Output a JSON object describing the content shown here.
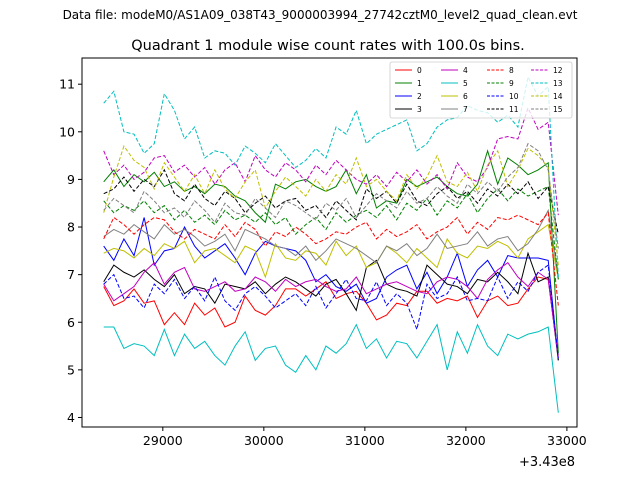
{
  "chart_data": {
    "type": "line",
    "suptitle": "Data file: modeM0/AS1A09_038T43_9000003994_27742cztM0_level2_quad_clean.evt",
    "title": "Quadrant 1 module wise count rates with 100.0s bins.",
    "xlabel": "",
    "ylabel": "",
    "x_offset_label": "+3.43e8",
    "xlim": [
      28200,
      33100
    ],
    "ylim": [
      3.8,
      11.55
    ],
    "x_ticks": [
      29000,
      30000,
      31000,
      32000,
      33000
    ],
    "x_tick_labels": [
      "29000",
      "30000",
      "31000",
      "32000",
      "33000"
    ],
    "y_ticks": [
      4,
      5,
      6,
      7,
      8,
      9,
      10,
      11
    ],
    "y_tick_labels": [
      "4",
      "5",
      "6",
      "7",
      "8",
      "9",
      "10",
      "11"
    ],
    "x": [
      28415,
      28515,
      28615,
      28715,
      28815,
      28915,
      29015,
      29115,
      29215,
      29315,
      29415,
      29515,
      29615,
      29715,
      29815,
      29915,
      30015,
      30115,
      30215,
      30315,
      30415,
      30515,
      30615,
      30715,
      30815,
      30915,
      31015,
      31115,
      31215,
      31315,
      31415,
      31515,
      31615,
      31715,
      31815,
      31915,
      32015,
      32115,
      32215,
      32315,
      32415,
      32515,
      32615,
      32715,
      32815,
      32915
    ],
    "legend_position": "top-right",
    "series": [
      {
        "name": "0",
        "color": "#ff0000",
        "dash": "solid",
        "values": [
          6.75,
          6.35,
          6.45,
          6.7,
          6.4,
          6.45,
          5.95,
          6.2,
          5.95,
          6.4,
          6.15,
          6.3,
          5.9,
          6.0,
          6.55,
          6.25,
          6.15,
          6.35,
          6.7,
          6.7,
          6.55,
          6.7,
          6.85,
          6.5,
          6.6,
          6.65,
          6.4,
          6.05,
          6.15,
          6.4,
          6.35,
          6.65,
          6.65,
          6.4,
          6.5,
          6.45,
          6.55,
          6.1,
          6.45,
          6.55,
          6.35,
          6.4,
          6.7,
          6.95,
          6.9,
          5.3
        ]
      },
      {
        "name": "1",
        "color": "#008000",
        "dash": "solid",
        "values": [
          8.95,
          9.2,
          8.85,
          9.1,
          8.95,
          9.15,
          8.85,
          8.95,
          8.75,
          8.85,
          8.7,
          8.9,
          8.85,
          8.65,
          8.55,
          8.3,
          8.1,
          8.9,
          8.8,
          8.95,
          9.0,
          8.85,
          8.75,
          8.85,
          9.2,
          8.7,
          9.1,
          8.4,
          8.55,
          8.5,
          9.0,
          8.85,
          8.95,
          9.05,
          8.85,
          8.7,
          8.65,
          8.9,
          9.6,
          8.9,
          9.45,
          9.3,
          9.1,
          9.2,
          9.35,
          5.35
        ]
      },
      {
        "name": "2",
        "color": "#0000ff",
        "dash": "solid",
        "values": [
          7.6,
          7.3,
          7.75,
          7.4,
          8.2,
          7.2,
          7.5,
          7.55,
          8.0,
          7.6,
          7.35,
          7.5,
          7.65,
          7.35,
          7.0,
          7.45,
          7.7,
          7.6,
          7.55,
          7.5,
          7.3,
          6.85,
          7.0,
          6.75,
          6.65,
          6.8,
          6.4,
          6.5,
          6.95,
          7.1,
          7.2,
          6.7,
          7.05,
          6.6,
          6.95,
          7.45,
          6.75,
          7.1,
          7.3,
          6.95,
          7.4,
          7.35,
          7.35,
          7.35,
          7.3,
          5.2
        ]
      },
      {
        "name": "3",
        "color": "#000000",
        "dash": "solid",
        "values": [
          6.85,
          7.2,
          7.05,
          6.95,
          7.1,
          6.9,
          6.75,
          7.0,
          6.6,
          6.75,
          6.7,
          6.4,
          6.8,
          6.75,
          6.7,
          6.85,
          6.6,
          6.8,
          6.95,
          6.85,
          6.7,
          6.55,
          6.8,
          6.9,
          6.6,
          6.25,
          7.15,
          7.3,
          6.8,
          6.7,
          6.65,
          6.55,
          7.2,
          7.0,
          6.8,
          6.75,
          6.6,
          6.9,
          6.85,
          7.05,
          6.85,
          6.6,
          7.45,
          6.85,
          6.95,
          5.2
        ]
      },
      {
        "name": "4",
        "color": "#bf00bf",
        "dash": "solid",
        "values": [
          6.8,
          6.45,
          6.6,
          6.75,
          7.05,
          7.25,
          6.8,
          7.05,
          7.15,
          6.7,
          6.65,
          6.75,
          6.85,
          6.65,
          6.7,
          6.95,
          6.85,
          6.65,
          6.9,
          6.75,
          6.85,
          6.9,
          6.75,
          6.65,
          6.7,
          6.95,
          6.6,
          6.7,
          6.8,
          6.85,
          6.75,
          6.65,
          6.6,
          6.85,
          6.95,
          6.9,
          6.75,
          6.5,
          6.9,
          7.1,
          7.25,
          6.95,
          6.75,
          7.05,
          6.9,
          5.25
        ]
      },
      {
        "name": "5",
        "color": "#00bfbf",
        "dash": "solid",
        "values": [
          5.9,
          5.9,
          5.45,
          5.55,
          5.5,
          5.3,
          5.85,
          5.3,
          5.75,
          5.45,
          5.6,
          5.3,
          5.1,
          5.5,
          5.8,
          5.2,
          5.45,
          5.5,
          5.1,
          4.95,
          5.3,
          5.0,
          5.5,
          5.35,
          5.55,
          5.95,
          5.45,
          5.65,
          5.25,
          5.6,
          5.55,
          5.25,
          5.6,
          5.95,
          5.0,
          5.8,
          5.35,
          5.95,
          5.5,
          5.3,
          5.75,
          5.65,
          5.75,
          5.8,
          5.9,
          4.1
        ]
      },
      {
        "name": "6",
        "color": "#bfbf00",
        "dash": "solid",
        "values": [
          7.45,
          7.55,
          7.5,
          7.35,
          7.55,
          7.4,
          7.65,
          7.55,
          7.7,
          7.25,
          7.5,
          7.55,
          7.4,
          7.25,
          7.6,
          7.5,
          6.95,
          7.65,
          7.35,
          7.3,
          7.5,
          7.45,
          7.2,
          7.7,
          7.4,
          7.6,
          7.15,
          7.25,
          7.6,
          7.45,
          7.25,
          7.55,
          7.35,
          7.15,
          7.75,
          7.45,
          7.35,
          7.6,
          7.55,
          7.7,
          7.6,
          7.35,
          7.75,
          7.9,
          8.05,
          6.9
        ]
      },
      {
        "name": "7",
        "color": "#808080",
        "dash": "solid",
        "values": [
          7.8,
          7.95,
          7.85,
          8.05,
          7.9,
          7.75,
          8.05,
          7.85,
          7.95,
          7.8,
          7.6,
          7.7,
          7.85,
          7.5,
          7.95,
          7.85,
          7.75,
          7.6,
          7.55,
          7.4,
          7.6,
          7.3,
          7.5,
          7.75,
          7.65,
          7.55,
          7.4,
          7.25,
          7.6,
          7.5,
          7.65,
          7.4,
          7.55,
          7.85,
          7.55,
          7.6,
          7.65,
          7.9,
          7.6,
          7.75,
          7.8,
          7.5,
          7.65,
          7.95,
          8.35,
          6.95
        ]
      },
      {
        "name": "8",
        "color": "#ff0000",
        "dash": "dashed",
        "values": [
          7.75,
          8.2,
          8.05,
          7.85,
          8.05,
          8.2,
          8.15,
          7.9,
          7.75,
          7.95,
          7.85,
          7.75,
          8.05,
          7.8,
          8.1,
          7.95,
          7.6,
          7.9,
          7.8,
          8.0,
          7.85,
          7.65,
          7.75,
          7.9,
          7.85,
          8.0,
          8.1,
          7.75,
          7.95,
          7.8,
          7.9,
          8.05,
          7.75,
          7.9,
          8.0,
          8.2,
          7.85,
          8.1,
          7.95,
          8.2,
          8.15,
          8.25,
          8.15,
          8.05,
          8.3,
          6.35
        ]
      },
      {
        "name": "9",
        "color": "#008000",
        "dash": "dashed",
        "values": [
          8.55,
          8.3,
          8.45,
          8.35,
          8.55,
          8.3,
          8.45,
          8.15,
          8.35,
          8.1,
          8.25,
          8.05,
          8.35,
          8.15,
          8.25,
          8.1,
          8.3,
          8.05,
          8.2,
          7.85,
          8.05,
          8.2,
          7.95,
          8.3,
          8.1,
          8.25,
          8.35,
          8.2,
          8.45,
          8.15,
          8.5,
          8.35,
          8.6,
          8.25,
          8.55,
          8.4,
          8.7,
          8.3,
          8.6,
          8.8,
          8.55,
          8.8,
          8.65,
          8.75,
          8.85,
          6.9
        ]
      },
      {
        "name": "10",
        "color": "#0000ff",
        "dash": "dashed",
        "values": [
          6.8,
          7.0,
          6.5,
          6.55,
          6.3,
          6.8,
          6.6,
          6.9,
          6.5,
          6.75,
          6.45,
          6.95,
          6.45,
          6.25,
          6.6,
          6.75,
          6.55,
          6.3,
          6.45,
          6.6,
          6.35,
          6.75,
          6.3,
          6.6,
          6.9,
          6.5,
          6.45,
          6.85,
          6.35,
          6.6,
          6.4,
          5.85,
          6.8,
          6.5,
          6.6,
          6.95,
          6.45,
          6.5,
          6.45,
          6.95,
          6.5,
          6.85,
          6.65,
          7.05,
          7.2,
          5.25
        ]
      },
      {
        "name": "11",
        "color": "#000000",
        "dash": "dashed",
        "values": [
          8.7,
          8.8,
          9.05,
          8.75,
          9.0,
          8.85,
          9.2,
          8.7,
          8.55,
          8.9,
          8.6,
          8.45,
          8.75,
          8.6,
          8.3,
          8.5,
          8.65,
          8.4,
          8.55,
          8.6,
          8.35,
          8.45,
          8.2,
          8.55,
          8.35,
          8.15,
          8.8,
          8.6,
          8.75,
          8.5,
          8.9,
          8.55,
          8.45,
          8.7,
          8.85,
          8.6,
          8.75,
          8.5,
          8.8,
          8.65,
          8.9,
          8.7,
          8.95,
          8.6,
          8.85,
          7.85
        ]
      },
      {
        "name": "12",
        "color": "#bf00bf",
        "dash": "dashed",
        "values": [
          9.6,
          9.1,
          9.3,
          9.0,
          9.15,
          9.45,
          9.5,
          9.15,
          9.3,
          9.05,
          9.25,
          8.9,
          9.2,
          9.35,
          8.95,
          9.5,
          9.2,
          9.05,
          9.35,
          9.2,
          8.95,
          9.3,
          9.1,
          9.4,
          9.2,
          9.0,
          8.9,
          9.1,
          8.85,
          9.15,
          8.95,
          9.2,
          8.9,
          9.1,
          8.8,
          9.35,
          9.05,
          8.95,
          9.25,
          9.85,
          9.9,
          9.85,
          10.5,
          10.05,
          10.2,
          8.25
        ]
      },
      {
        "name": "13",
        "color": "#00bfbf",
        "dash": "dashed",
        "values": [
          10.6,
          10.85,
          10.0,
          9.95,
          9.55,
          9.75,
          10.8,
          10.45,
          9.85,
          10.1,
          9.45,
          9.6,
          9.55,
          9.3,
          9.7,
          9.55,
          9.35,
          9.75,
          9.5,
          9.25,
          9.4,
          9.65,
          9.45,
          10.1,
          9.95,
          10.45,
          9.75,
          9.95,
          10.05,
          10.15,
          10.25,
          9.6,
          9.75,
          10.1,
          10.25,
          10.3,
          10.55,
          10.45,
          10.4,
          10.2,
          10.35,
          10.1,
          11.15,
          10.75,
          10.95,
          6.95
        ]
      },
      {
        "name": "14",
        "color": "#bfbf00",
        "dash": "dashed",
        "values": [
          8.3,
          9.05,
          9.7,
          9.4,
          9.25,
          8.8,
          9.35,
          9.05,
          8.75,
          9.1,
          8.7,
          9.2,
          8.8,
          8.6,
          8.95,
          9.2,
          8.4,
          8.75,
          9.05,
          8.85,
          8.65,
          9.0,
          8.75,
          9.1,
          8.9,
          9.45,
          8.85,
          9.0,
          8.75,
          8.55,
          9.1,
          8.8,
          9.05,
          9.5,
          8.95,
          8.85,
          9.15,
          8.75,
          9.3,
          9.6,
          8.85,
          9.2,
          9.65,
          9.5,
          9.25,
          7.2
        ]
      },
      {
        "name": "15",
        "color": "#808080",
        "dash": "dashed",
        "values": [
          8.35,
          8.6,
          8.45,
          8.3,
          8.75,
          8.55,
          8.3,
          8.4,
          8.2,
          8.55,
          8.35,
          8.1,
          8.5,
          8.3,
          8.25,
          8.6,
          8.4,
          8.2,
          8.55,
          8.45,
          8.3,
          8.15,
          8.5,
          8.35,
          8.6,
          8.2,
          8.45,
          8.7,
          8.55,
          8.4,
          8.75,
          8.5,
          8.6,
          8.85,
          8.65,
          8.5,
          8.9,
          8.7,
          8.95,
          8.75,
          9.05,
          9.25,
          9.75,
          9.6,
          9.2,
          7.55
        ]
      }
    ]
  }
}
